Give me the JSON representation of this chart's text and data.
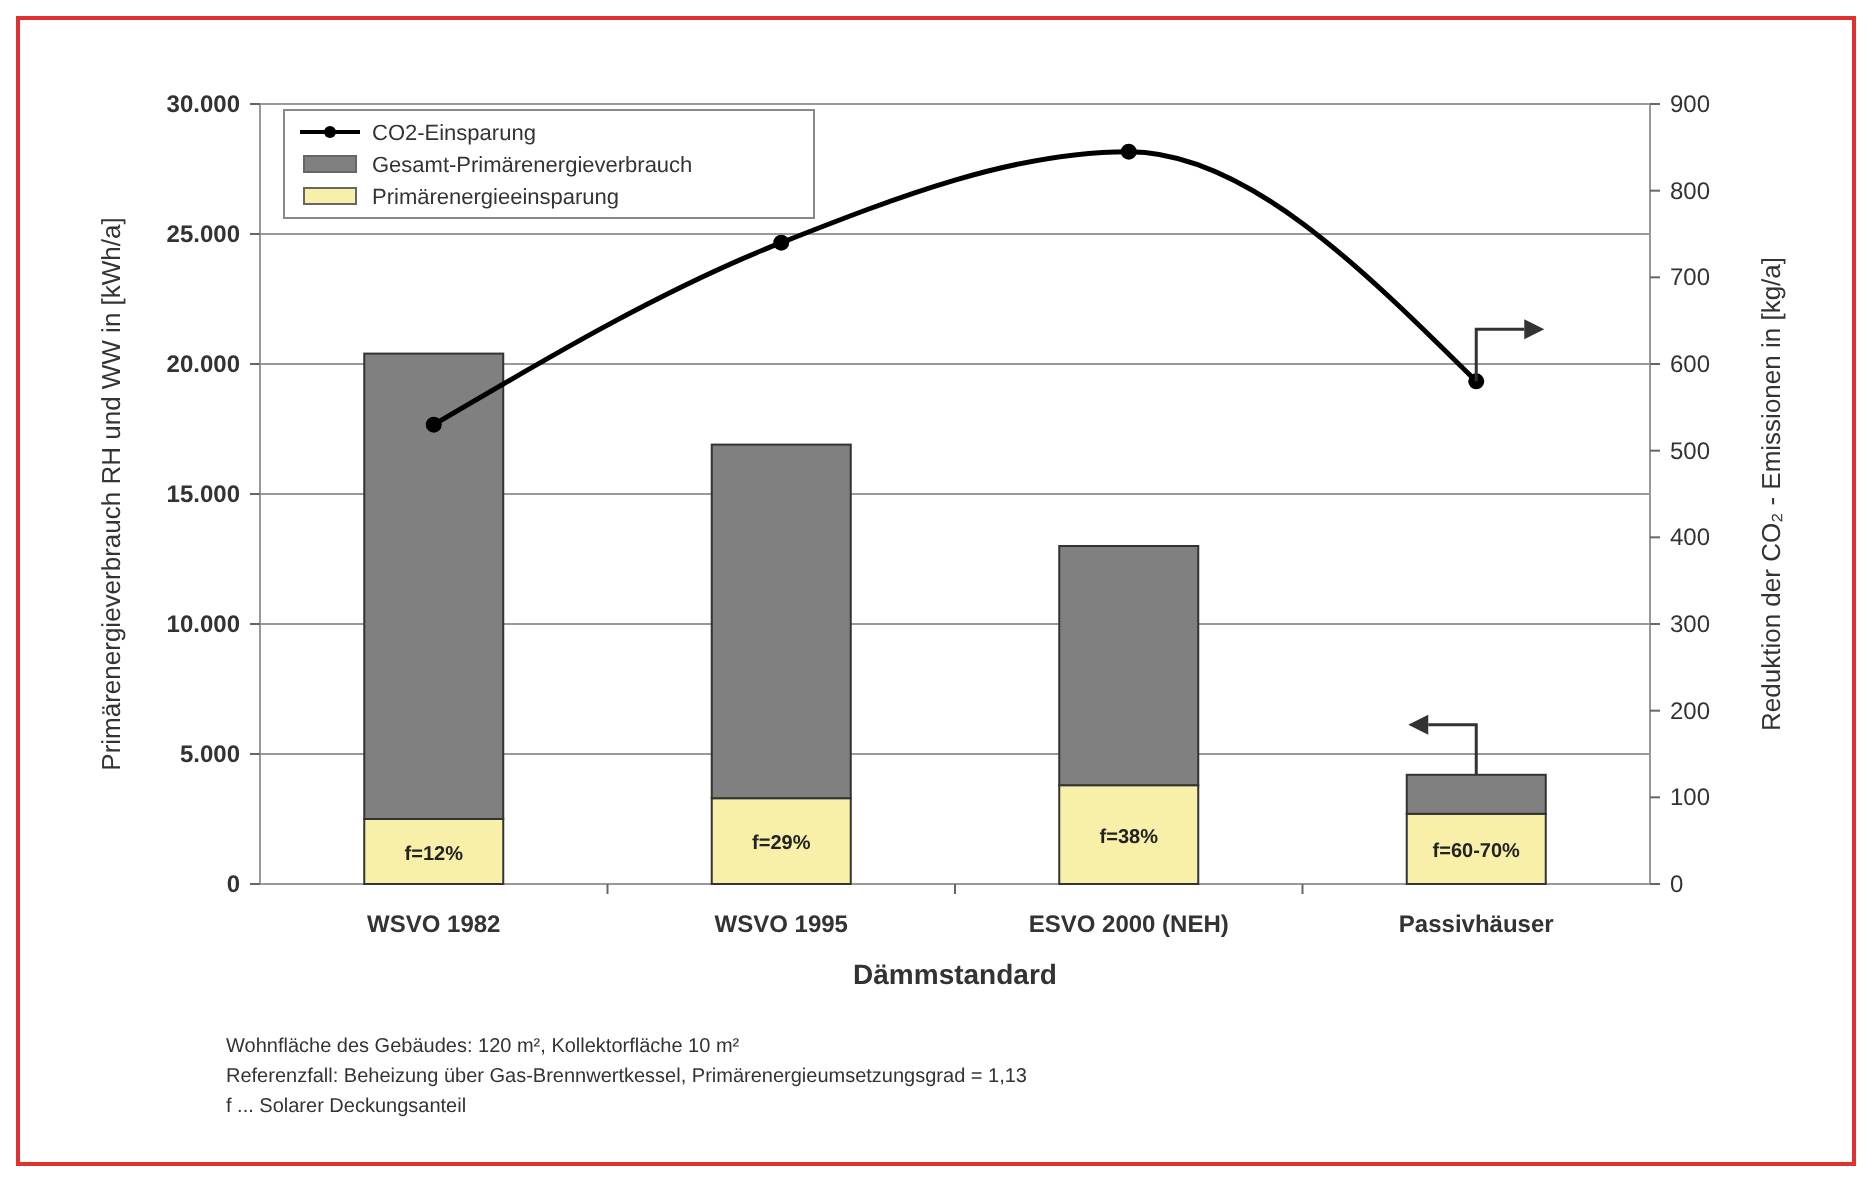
{
  "chart_data": {
    "type": "bar",
    "stacked": true,
    "xlabel": "Dämmstandard",
    "ylabel": "Primärenergieverbrauch RH und WW in [kWh/a]",
    "y2label": "Reduktion der CO₂ - Emissionen in [kg/a]",
    "categories": [
      "WSVO 1982",
      "WSVO 1995",
      "ESVO 2000 (NEH)",
      "Passivhäuser"
    ],
    "series": [
      {
        "name": "Primärenergieeinsparung",
        "color": "#f8f0a8",
        "values": [
          2500,
          3300,
          3800,
          2700
        ]
      },
      {
        "name": "Gesamt-Primärenergieverbrauch",
        "color": "#808080",
        "values": [
          17900,
          13600,
          9200,
          1500
        ]
      },
      {
        "name": "CO2-Einsparung",
        "type": "line",
        "axis": "y2",
        "color": "#000000",
        "marker": "circle",
        "line_style": "solid",
        "values": [
          530,
          740,
          845,
          580
        ]
      }
    ],
    "ylim": [
      0,
      30000
    ],
    "yticks": [
      {
        "value": 0,
        "label": "0"
      },
      {
        "value": 5000,
        "label": "5.000"
      },
      {
        "value": 10000,
        "label": "10.000"
      },
      {
        "value": 15000,
        "label": "15.000"
      },
      {
        "value": 20000,
        "label": "20.000"
      },
      {
        "value": 25000,
        "label": "25.000"
      },
      {
        "value": 30000,
        "label": "30.000"
      }
    ],
    "y2lim": [
      0,
      900
    ],
    "y2ticks": [
      0,
      100,
      200,
      300,
      400,
      500,
      600,
      700,
      800,
      900
    ],
    "grid": "y",
    "legend": "top left",
    "annotations": [
      {
        "text": "f=12%",
        "x": "WSVO 1982",
        "y": 2500
      },
      {
        "text": "f=29%",
        "x": "WSVO 1995",
        "y": 3300
      },
      {
        "text": "f=38%",
        "x": "ESVO 2000 (NEH)",
        "y": 3800
      },
      {
        "text": "f=60-70%",
        "x": "Passivhäuser",
        "y": 2700
      },
      "Wohnfläche des Gebäudes: 120 m², Kollektorfläche 10 m²",
      "Referenzfall: Beheizung über Gas-Brennwertkessel, Primärenergieumsetzungsgrad = 1,13",
      "f ... Solarer Deckungsanteil"
    ]
  }
}
